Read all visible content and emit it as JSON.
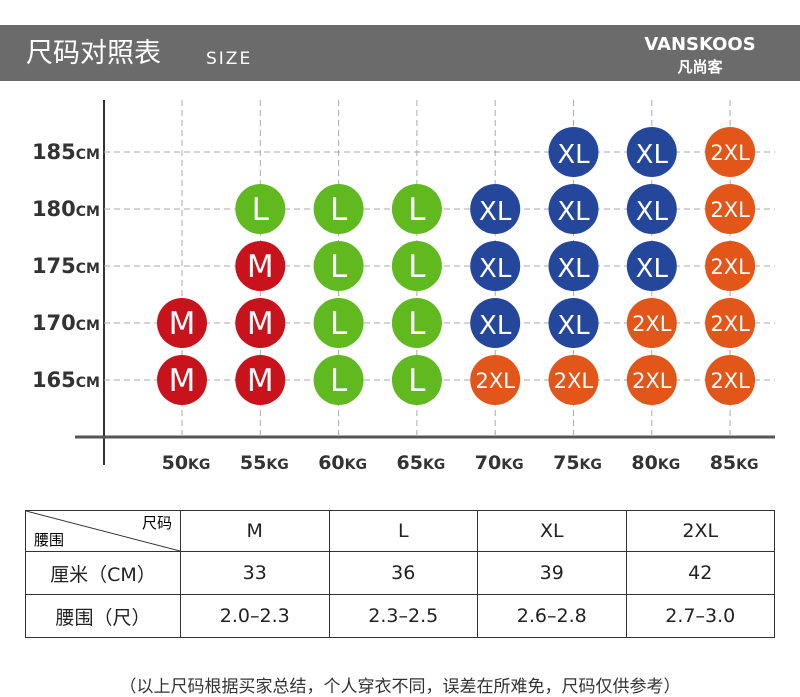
{
  "header": {
    "title": "尺码对照表",
    "subtitle": "SIZE",
    "brand": "VANSKOOS",
    "brand_sub": "凡尚客"
  },
  "grid": {
    "heights": [
      185,
      180,
      175,
      170,
      165
    ],
    "height_unit": "CM",
    "weights": [
      50,
      55,
      60,
      65,
      70,
      75,
      80,
      85
    ],
    "weight_unit": "KG",
    "rows": [
      [
        null,
        null,
        null,
        null,
        null,
        "XL",
        "XL",
        "2XL"
      ],
      [
        null,
        "L",
        "L",
        "L",
        "XL",
        "XL",
        "XL",
        "2XL"
      ],
      [
        null,
        "M",
        "L",
        "L",
        "XL",
        "XL",
        "XL",
        "2XL"
      ],
      [
        "M",
        "M",
        "L",
        "L",
        "XL",
        "XL",
        "2XL",
        "2XL"
      ],
      [
        "M",
        "M",
        "L",
        "L",
        "2XL",
        "2XL",
        "2XL",
        "2XL"
      ]
    ],
    "size_colors": {
      "M": "#c8121c",
      "L": "#5fb91f",
      "XL": "#24479b",
      "2XL": "#e2561a"
    }
  },
  "table": {
    "corner_top": "尺码",
    "corner_bottom": "腰围",
    "columns": [
      "M",
      "L",
      "XL",
      "2XL"
    ],
    "rows": [
      {
        "label": "厘米（CM）",
        "values": [
          "33",
          "36",
          "39",
          "42"
        ]
      },
      {
        "label": "腰围（尺）",
        "values": [
          "2.0–2.3",
          "2.3–2.5",
          "2.6–2.8",
          "2.7–3.0"
        ]
      }
    ]
  },
  "note": "（以上尺码根据买家总结，个人穿衣不同，误差在所难免，尺码仅供参考）"
}
